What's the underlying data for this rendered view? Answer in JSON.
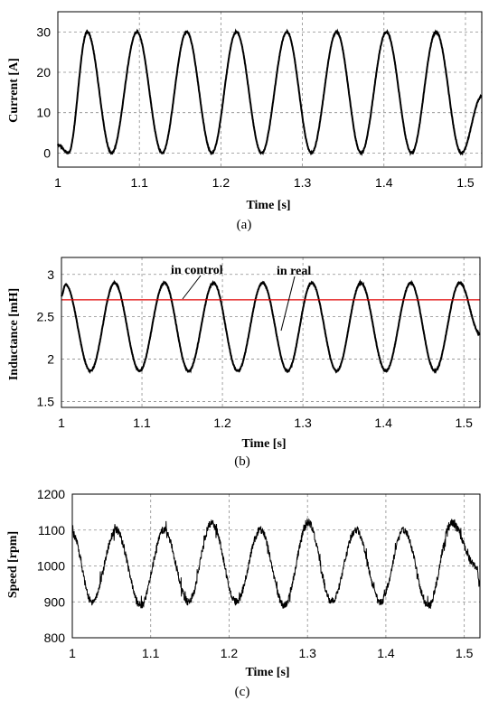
{
  "chart_data": [
    {
      "type": "line",
      "caption": "(a)",
      "xlabel": "Time [s]",
      "ylabel": "Current [A]",
      "xlim": [
        1,
        1.52
      ],
      "ylim": [
        -3.5,
        35
      ],
      "xticks": [
        "1",
        "1.1",
        "1.2",
        "1.3",
        "1.4",
        "1.5"
      ],
      "yticks": [
        "0",
        "10",
        "20",
        "30"
      ],
      "grid": true,
      "series": [
        {
          "values_desc": "periodic waveform, period 0.0612 s, min 0, max 30",
          "x": [
            1.0,
            1.013,
            1.036,
            1.066,
            1.097,
            1.128,
            1.158,
            1.189,
            1.219,
            1.25,
            1.281,
            1.311,
            1.342,
            1.372,
            1.403,
            1.434,
            1.464,
            1.495,
            1.52
          ],
          "y": [
            2,
            0,
            30,
            0,
            30,
            0,
            30,
            0,
            30,
            0,
            30,
            0,
            30,
            0,
            30,
            0,
            30,
            0,
            14
          ]
        }
      ]
    },
    {
      "type": "line",
      "caption": "(b)",
      "xlabel": "Time [s]",
      "ylabel": "Inductance [mH]",
      "xlim": [
        1,
        1.52
      ],
      "ylim": [
        1.43,
        3.2
      ],
      "xticks": [
        "1",
        "1.1",
        "1.2",
        "1.3",
        "1.4",
        "1.5"
      ],
      "yticks": [
        "1.5",
        "2",
        "2.5",
        "3"
      ],
      "grid": true,
      "annotations": [
        "in control",
        "in real"
      ],
      "series": [
        {
          "name": "in control",
          "color": "#e00000",
          "x": [
            1,
            1.52
          ],
          "y": [
            2.7,
            2.7
          ]
        },
        {
          "name": "in real",
          "color": "#000000",
          "x": [
            1.0,
            1.005,
            1.036,
            1.066,
            1.097,
            1.128,
            1.158,
            1.189,
            1.219,
            1.25,
            1.281,
            1.311,
            1.342,
            1.372,
            1.403,
            1.434,
            1.464,
            1.495,
            1.52
          ],
          "y": [
            2.75,
            2.88,
            1.86,
            2.9,
            1.86,
            2.9,
            1.86,
            2.9,
            1.86,
            2.9,
            1.86,
            2.9,
            1.86,
            2.9,
            1.86,
            2.9,
            1.86,
            2.9,
            2.3
          ]
        }
      ]
    },
    {
      "type": "line",
      "caption": "(c)",
      "xlabel": "Time [s]",
      "ylabel": "Speed [rpm]",
      "xlim": [
        1,
        1.52
      ],
      "ylim": [
        800,
        1200
      ],
      "xticks": [
        "1",
        "1.1",
        "1.2",
        "1.3",
        "1.4",
        "1.5"
      ],
      "yticks": [
        "800",
        "900",
        "1000",
        "1100",
        "1200"
      ],
      "grid": true,
      "series": [
        {
          "values_desc": "noisy periodic waveform, min about 890, max about 1120",
          "x": [
            1.0,
            1.025,
            1.056,
            1.087,
            1.117,
            1.148,
            1.178,
            1.209,
            1.24,
            1.27,
            1.301,
            1.331,
            1.362,
            1.393,
            1.423,
            1.454,
            1.484,
            1.515,
            1.52
          ],
          "y": [
            1090,
            900,
            1100,
            890,
            1100,
            900,
            1120,
            900,
            1100,
            890,
            1120,
            900,
            1100,
            900,
            1100,
            890,
            1120,
            1000,
            960
          ]
        }
      ]
    }
  ]
}
